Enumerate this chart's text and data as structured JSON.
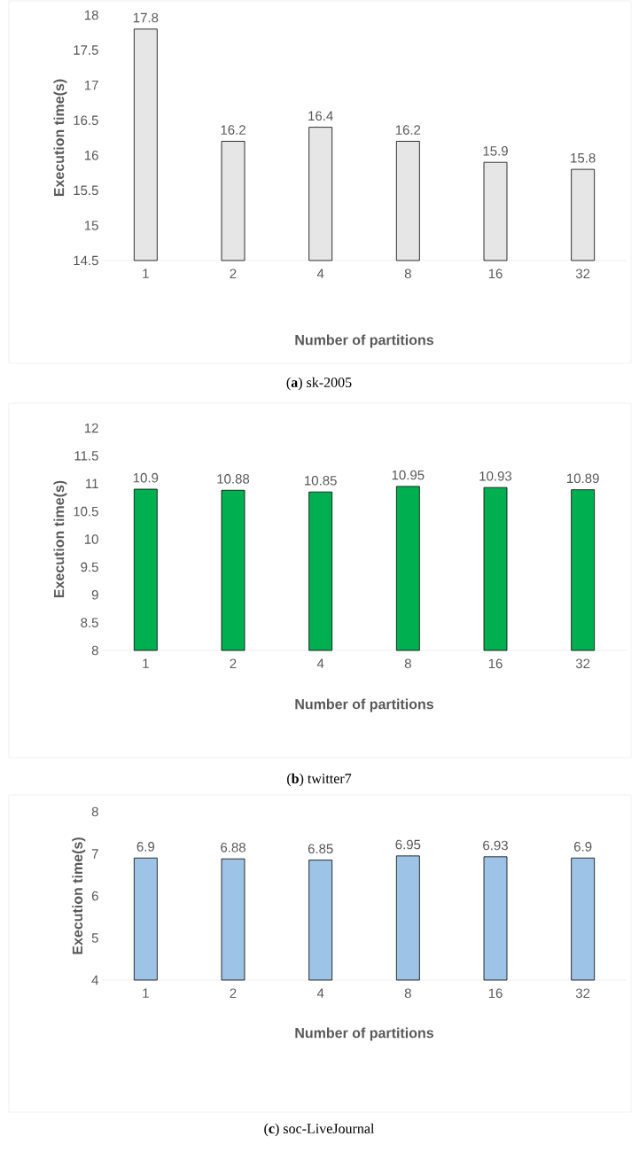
{
  "chart_data": [
    {
      "type": "bar",
      "categories": [
        "1",
        "2",
        "4",
        "8",
        "16",
        "32"
      ],
      "values": [
        17.8,
        16.2,
        16.4,
        16.2,
        15.9,
        15.8
      ],
      "color": "#e7e6e6",
      "xlabel": "Number of partitions",
      "ylabel": "Execution time(s)",
      "ylim": [
        14.5,
        18
      ],
      "yticks": [
        14.5,
        15,
        15.5,
        16,
        16.5,
        17,
        17.5,
        18
      ],
      "data_labels": true,
      "annotations": [
        "(**a**) sk-2005"
      ]
    },
    {
      "type": "bar",
      "categories": [
        "1",
        "2",
        "4",
        "8",
        "16",
        "32"
      ],
      "values": [
        10.9,
        10.88,
        10.85,
        10.95,
        10.93,
        10.89
      ],
      "color": "#00b050",
      "xlabel": "Number of partitions",
      "ylabel": "Execution time(s)",
      "ylim": [
        8,
        12
      ],
      "yticks": [
        8,
        8.5,
        9,
        9.5,
        10,
        10.5,
        11,
        11.5,
        12
      ],
      "data_labels": true,
      "annotations": [
        "(**b**) twitter7"
      ]
    },
    {
      "type": "bar",
      "categories": [
        "1",
        "2",
        "4",
        "8",
        "16",
        "32"
      ],
      "values": [
        6.9,
        6.88,
        6.85,
        6.95,
        6.93,
        6.9
      ],
      "color": "#9dc3e6",
      "xlabel": "Number of partitions",
      "ylabel": "Execution time(s)",
      "ylim": [
        4,
        8
      ],
      "yticks": [
        4,
        5,
        6,
        7,
        8
      ],
      "data_labels": true,
      "annotations": [
        "(**c**) soc-LiveJournal"
      ]
    }
  ]
}
